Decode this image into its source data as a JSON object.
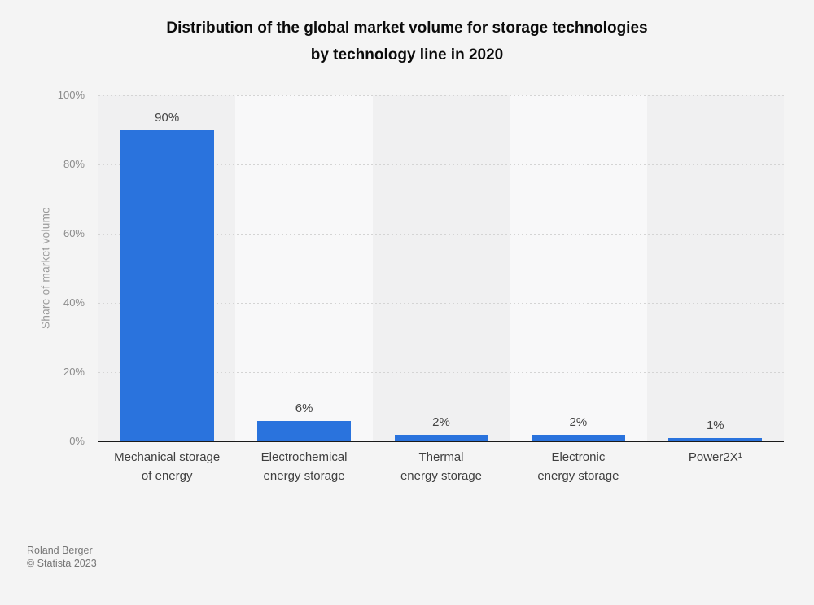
{
  "title": {
    "lines": [
      "Distribution of the global market volume for storage technologies",
      "by technology line in 2020"
    ]
  },
  "chart_data": {
    "type": "bar",
    "title": "Distribution of the global market volume for storage technologies by technology line in 2020",
    "categories": [
      "Mechanical storage of energy",
      "Electrochemical energy storage",
      "Thermal energy storage",
      "Electronic energy storage",
      "Power2X¹"
    ],
    "category_label_lines": [
      [
        "Mechanical storage",
        "of energy"
      ],
      [
        "Electrochemical",
        "energy storage"
      ],
      [
        "Thermal",
        "energy storage"
      ],
      [
        "Electronic",
        "energy storage"
      ],
      [
        "Power2X¹"
      ]
    ],
    "values": [
      90,
      6,
      2,
      2,
      1
    ],
    "value_labels": [
      "90%",
      "6%",
      "2%",
      "2%",
      "1%"
    ],
    "xlabel": "",
    "ylabel": "Share of market volume",
    "ylim": [
      0,
      100
    ],
    "yticks": [
      0,
      20,
      40,
      60,
      80,
      100
    ],
    "ytick_labels": [
      "0%",
      "20%",
      "40%",
      "60%",
      "80%",
      "100%"
    ],
    "grid": "horizontal-dotted",
    "legend": "none",
    "bar_color": "#2a73dd",
    "band_colors": [
      "#f0f0f1",
      "#f8f8f9"
    ]
  },
  "footer": {
    "source": "Roland Berger",
    "copyright": "© Statista 2023"
  },
  "colors": {
    "background": "#f4f4f4",
    "axis_line": "#1a1a1a",
    "gridline": "#d4d4d4",
    "tick_text": "#8c8c8c",
    "axis_title_text": "#9b9b9b",
    "label_text": "#3f3f3f",
    "title_text": "#0b0b0b",
    "footer_text": "#767676"
  }
}
